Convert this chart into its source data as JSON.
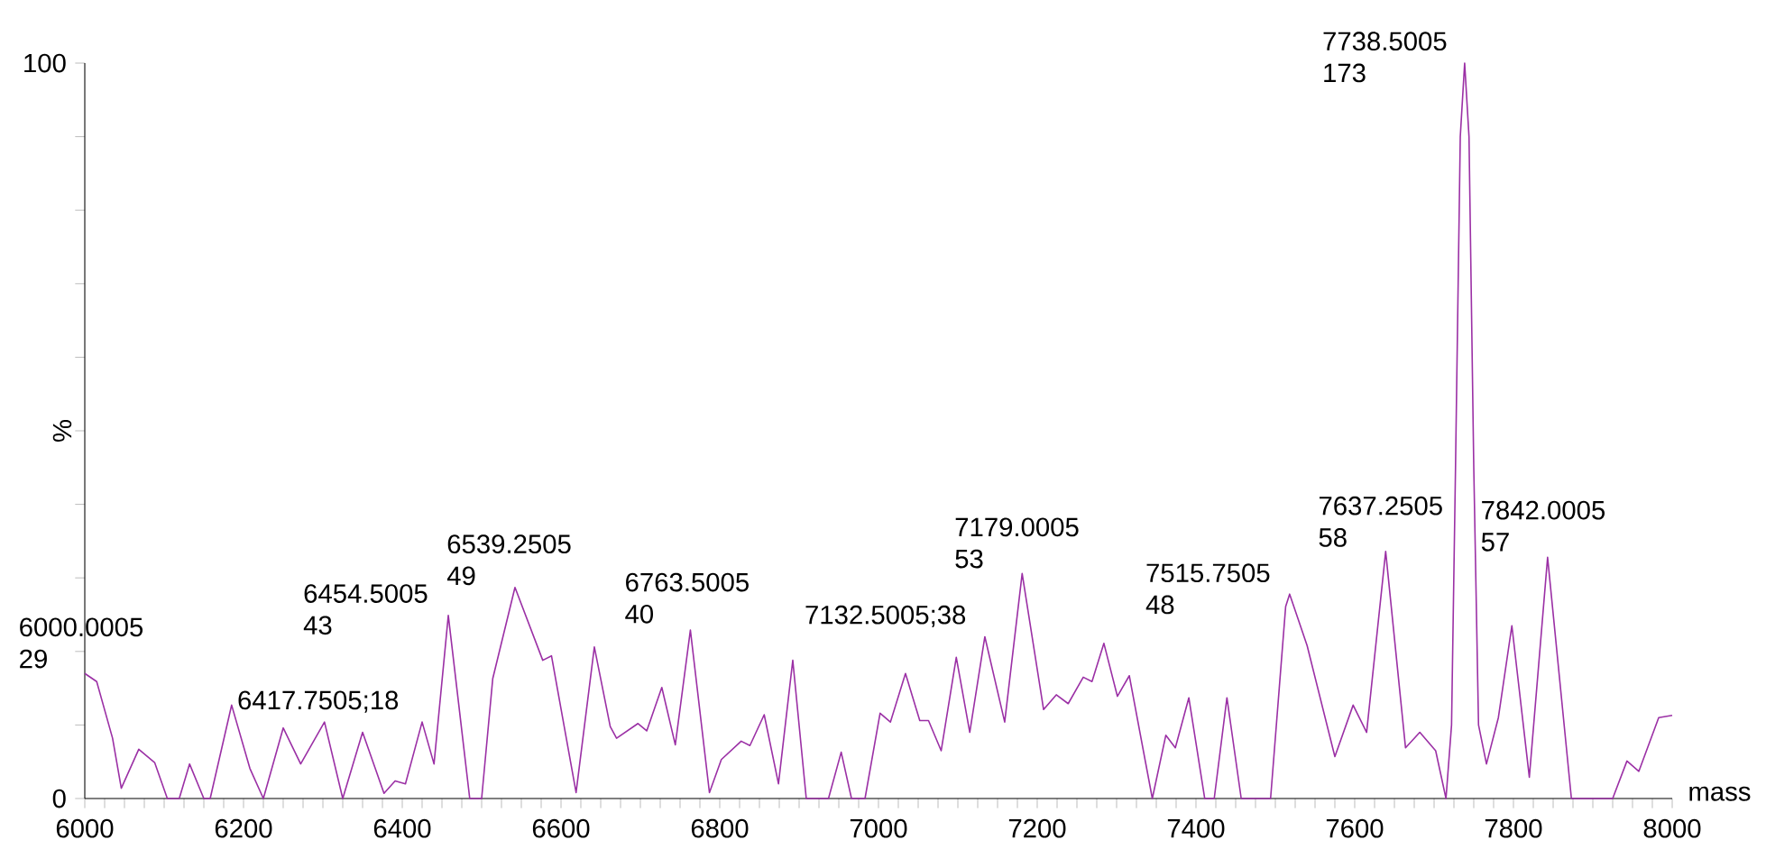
{
  "chart_data": {
    "type": "line",
    "xlabel": "mass",
    "ylabel": "%",
    "xlim": [
      6000,
      8000
    ],
    "ylim": [
      0,
      100
    ],
    "xticks": [
      6000,
      {
        "value": 6025,
        "label": null
      },
      {
        "value": 6050,
        "label": null
      },
      {
        "value": 6075,
        "label": null
      },
      {
        "value": 6100,
        "label": null
      },
      {
        "value": 6125,
        "label": null
      },
      {
        "value": 6150,
        "label": null
      },
      {
        "value": 6175,
        "label": null
      },
      6200,
      {
        "value": 6225,
        "label": null
      },
      {
        "value": 6250,
        "label": null
      },
      {
        "value": 6275,
        "label": null
      },
      {
        "value": 6300,
        "label": null
      },
      {
        "value": 6325,
        "label": null
      },
      {
        "value": 6350,
        "label": null
      },
      {
        "value": 6375,
        "label": null
      },
      6400,
      {
        "value": 6425,
        "label": null
      },
      {
        "value": 6450,
        "label": null
      },
      {
        "value": 6475,
        "label": null
      },
      {
        "value": 6500,
        "label": null
      },
      {
        "value": 6525,
        "label": null
      },
      {
        "value": 6550,
        "label": null
      },
      {
        "value": 6575,
        "label": null
      },
      6600,
      {
        "value": 6625,
        "label": null
      },
      {
        "value": 6650,
        "label": null
      },
      {
        "value": 6675,
        "label": null
      },
      {
        "value": 6700,
        "label": null
      },
      {
        "value": 6725,
        "label": null
      },
      {
        "value": 6750,
        "label": null
      },
      {
        "value": 6775,
        "label": null
      },
      6800,
      {
        "value": 6825,
        "label": null
      },
      {
        "value": 6850,
        "label": null
      },
      {
        "value": 6875,
        "label": null
      },
      {
        "value": 6900,
        "label": null
      },
      {
        "value": 6925,
        "label": null
      },
      {
        "value": 6950,
        "label": null
      },
      {
        "value": 6975,
        "label": null
      },
      7000,
      {
        "value": 7025,
        "label": null
      },
      {
        "value": 7050,
        "label": null
      },
      {
        "value": 7075,
        "label": null
      },
      {
        "value": 7100,
        "label": null
      },
      {
        "value": 7125,
        "label": null
      },
      {
        "value": 7150,
        "label": null
      },
      {
        "value": 7175,
        "label": null
      },
      7200,
      {
        "value": 7225,
        "label": null
      },
      {
        "value": 7250,
        "label": null
      },
      {
        "value": 7275,
        "label": null
      },
      {
        "value": 7300,
        "label": null
      },
      {
        "value": 7325,
        "label": null
      },
      {
        "value": 7350,
        "label": null
      },
      {
        "value": 7375,
        "label": null
      },
      7400,
      {
        "value": 7425,
        "label": null
      },
      {
        "value": 7450,
        "label": null
      },
      {
        "value": 7475,
        "label": null
      },
      {
        "value": 7500,
        "label": null
      },
      {
        "value": 7525,
        "label": null
      },
      {
        "value": 7550,
        "label": null
      },
      {
        "value": 7575,
        "label": null
      },
      7600,
      {
        "value": 7625,
        "label": null
      },
      {
        "value": 7650,
        "label": null
      },
      {
        "value": 7675,
        "label": null
      },
      {
        "value": 7700,
        "label": null
      },
      {
        "value": 7725,
        "label": null
      },
      {
        "value": 7750,
        "label": null
      },
      {
        "value": 7775,
        "label": null
      },
      7800,
      {
        "value": 7825,
        "label": null
      },
      {
        "value": 7850,
        "label": null
      },
      {
        "value": 7875,
        "label": null
      },
      {
        "value": 7900,
        "label": null
      },
      {
        "value": 7925,
        "label": null
      },
      {
        "value": 7950,
        "label": null
      },
      {
        "value": 7975,
        "label": null
      },
      8000
    ],
    "yticks": [
      0,
      {
        "value": 10,
        "label": null
      },
      {
        "value": 20,
        "label": null
      },
      {
        "value": 30,
        "label": null
      },
      {
        "value": 40,
        "label": null
      },
      {
        "value": 50,
        "label": null
      },
      {
        "value": 60,
        "label": null
      },
      {
        "value": 70,
        "label": null
      },
      {
        "value": 80,
        "label": null
      },
      {
        "value": 90,
        "label": null
      },
      100
    ],
    "x": [
      6000,
      6015,
      6035,
      6046,
      6068,
      6088,
      6104,
      6119,
      6132,
      6150,
      6158,
      6185,
      6208,
      6225,
      6250,
      6272,
      6302,
      6325,
      6350,
      6377,
      6391,
      6404,
      6425,
      6440,
      6458,
      6485,
      6500,
      6514,
      6542,
      6577,
      6588,
      6619,
      6642,
      6662,
      6670,
      6697,
      6708,
      6727,
      6744,
      6763,
      6787,
      6802,
      6827,
      6838,
      6856,
      6874,
      6892,
      6909,
      6937,
      6953,
      6966,
      6983,
      7002,
      7015,
      7034,
      7052,
      7063,
      7079,
      7098,
      7115,
      7134,
      7159,
      7181,
      7208,
      7224,
      7239,
      7258,
      7269,
      7284,
      7301,
      7316,
      7345,
      7362,
      7374,
      7391,
      7411,
      7423,
      7439,
      7457,
      7494,
      7513,
      7518,
      7540,
      7575,
      7598,
      7615,
      7639,
      7664,
      7682,
      7702,
      7715,
      7722,
      7727,
      7733,
      7738.5,
      7744,
      7750,
      7756,
      7766,
      7781,
      7798,
      7820,
      7843,
      7873,
      7925,
      7943,
      7958,
      7983,
      8000
    ],
    "series": [
      {
        "color": "#9b30a5",
        "values": [
          17.0,
          15.9,
          8.2,
          1.4,
          6.7,
          4.9,
          0,
          0,
          4.7,
          0,
          0,
          12.7,
          4.1,
          0,
          9.6,
          4.7,
          10.4,
          0,
          9.0,
          0.7,
          2.4,
          2.0,
          10.4,
          4.7,
          24.9,
          0,
          0,
          16.3,
          28.7,
          18.8,
          19.4,
          0.8,
          20.6,
          9.8,
          8.2,
          10.2,
          9.2,
          15.1,
          7.3,
          22.9,
          0.8,
          5.3,
          7.8,
          7.2,
          11.4,
          2.0,
          18.8,
          0,
          0,
          6.3,
          0,
          0,
          11.6,
          10.4,
          17.0,
          10.6,
          10.6,
          6.5,
          19.2,
          9.0,
          22.0,
          10.4,
          30.6,
          12.1,
          14.1,
          12.9,
          16.5,
          15.9,
          21.1,
          13.9,
          16.7,
          0,
          8.6,
          6.9,
          13.7,
          0,
          0,
          13.7,
          0,
          0,
          26.1,
          27.8,
          20.8,
          5.7,
          12.7,
          9.0,
          33.6,
          6.9,
          9.0,
          6.5,
          0,
          10,
          45,
          90,
          100,
          90,
          45,
          10,
          4.7,
          11.0,
          23.5,
          2.9,
          32.8,
          0,
          0,
          5.1,
          3.7,
          11.0,
          11.3
        ]
      }
    ],
    "annotations": [
      {
        "text": "6000.0005 29",
        "x": 6000,
        "y": 17.0
      },
      {
        "text": "6417.7505;18",
        "x": 6417.75,
        "y": 10.4
      },
      {
        "text": "6454.5005 43",
        "x": 6454.5,
        "y": 24.9
      },
      {
        "text": "6539.2505 49",
        "x": 6539.25,
        "y": 28.3
      },
      {
        "text": "6763.5005 40",
        "x": 6763.5,
        "y": 23.1
      },
      {
        "text": "7132.5005;38",
        "x": 7132.5,
        "y": 22.0
      },
      {
        "text": "7179.0005 53",
        "x": 7179,
        "y": 30.6
      },
      {
        "text": "7515.7505 48",
        "x": 7515.75,
        "y": 27.7
      },
      {
        "text": "7637.2505 58",
        "x": 7637.25,
        "y": 33.5
      },
      {
        "text": "7738.5005 173",
        "x": 7738.5,
        "y": 100
      },
      {
        "text": "7842.0005 57",
        "x": 7842,
        "y": 32.9
      }
    ]
  }
}
